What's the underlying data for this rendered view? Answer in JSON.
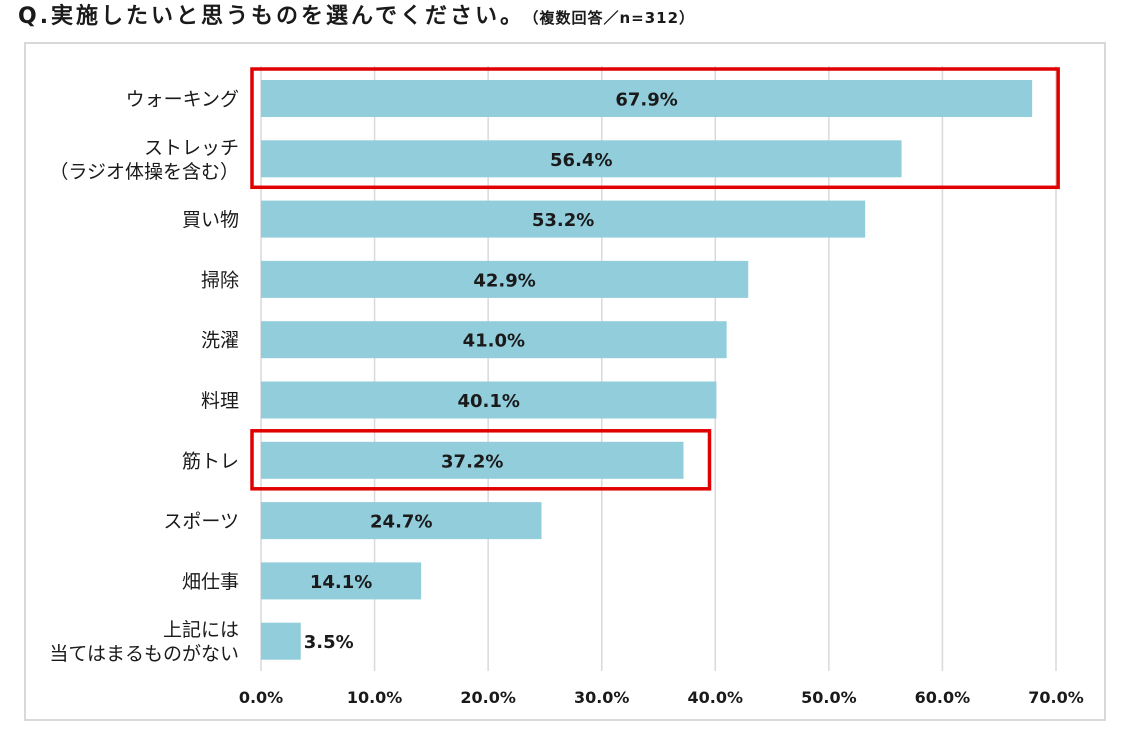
{
  "question": {
    "text": "Q.実施したいと思うものを選んでください。",
    "note": "（複数回答／n=312）"
  },
  "chart_data": {
    "type": "bar",
    "orientation": "horizontal",
    "title": "Q.実施したいと思うものを選んでください。",
    "subtitle": "（複数回答／n=312）",
    "categories": [
      [
        "ウォーキング"
      ],
      [
        "ストレッチ",
        "（ラジオ体操を含む）"
      ],
      [
        "買い物"
      ],
      [
        "掃除"
      ],
      [
        "洗濯"
      ],
      [
        "料理"
      ],
      [
        "筋トレ"
      ],
      [
        "スポーツ"
      ],
      [
        "畑仕事"
      ],
      [
        "上記には",
        "当てはまるものがない"
      ]
    ],
    "values": [
      67.9,
      56.4,
      53.2,
      42.9,
      41.0,
      40.1,
      37.2,
      24.7,
      14.1,
      3.5
    ],
    "value_labels": [
      "67.9%",
      "56.4%",
      "53.2%",
      "42.9%",
      "41.0%",
      "40.1%",
      "37.2%",
      "24.7%",
      "14.1%",
      "3.5%"
    ],
    "xlim": [
      0,
      70
    ],
    "ticks": [
      "0.0%",
      "10.0%",
      "20.0%",
      "30.0%",
      "40.0%",
      "50.0%",
      "60.0%",
      "70.0%"
    ],
    "grid": true,
    "highlight_groups": [
      [
        0,
        1
      ],
      [
        6
      ]
    ],
    "colors": {
      "bar": "#92CDDC",
      "grid": "#d9d9d9",
      "highlight": "#E00000"
    }
  }
}
